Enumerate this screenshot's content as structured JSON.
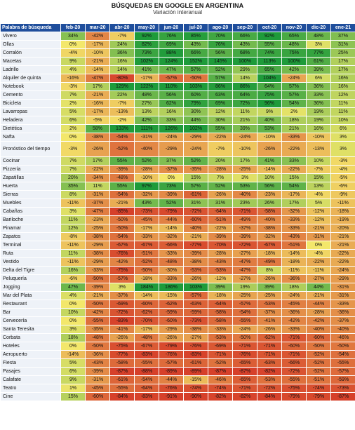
{
  "chart_data": {
    "type": "heatmap",
    "title": "BÚSQUEDAS EN GOOGLE EN ARGENTINA",
    "subtitle": "Variación interanual",
    "row_header": "Palabra de búsqueda",
    "columns": [
      "feb-20",
      "mar-20",
      "abr-20",
      "may-20",
      "jun-20",
      "jul-20",
      "ago-20",
      "sep-20",
      "oct-20",
      "nov-20",
      "dic-20",
      "ene-21"
    ],
    "colors": {
      "header_bg": "#1f4e9c",
      "high": "#1e9b3a",
      "mid": "#f3e76b",
      "low": "#d6402a"
    },
    "rows": [
      {
        "label": "Vivero",
        "values": [
          34,
          -42,
          -7,
          92,
          76,
          85,
          70,
          66,
          92,
          65,
          48,
          37
        ]
      },
      {
        "label": "Ollas",
        "values": [
          0,
          -17,
          24,
          82,
          69,
          43,
          76,
          43,
          55,
          48,
          3,
          31
        ]
      },
      {
        "label": "Corralón",
        "values": [
          -4,
          -10,
          36,
          73,
          88,
          66,
          56,
          68,
          74,
          75,
          77,
          25
        ]
      },
      {
        "label": "Macetas",
        "values": [
          9,
          -21,
          16,
          102,
          124,
          152,
          145,
          100,
          113,
          100,
          61,
          17
        ]
      },
      {
        "label": "Ladrillo",
        "values": [
          4,
          -14,
          14,
          41,
          47,
          57,
          52,
          29,
          65,
          42,
          39,
          17
        ]
      },
      {
        "label": "Alquiler de quinta",
        "values": [
          -16,
          -47,
          -80,
          -17,
          -57,
          -50,
          57,
          14,
          104,
          -24,
          6,
          16
        ]
      },
      {
        "label": "Notebook",
        "values": [
          -3,
          17,
          129,
          122,
          110,
          103,
          86,
          86,
          64,
          57,
          36,
          16
        ]
      },
      {
        "label": "Cemento",
        "values": [
          7,
          -21,
          22,
          48,
          56,
          60,
          63,
          64,
          75,
          57,
          33,
          12
        ]
      },
      {
        "label": "Bicicleta",
        "values": [
          2,
          -16,
          -7,
          27,
          62,
          79,
          69,
          72,
          96,
          54,
          36,
          11
        ]
      },
      {
        "label": "Lavarropas",
        "values": [
          5,
          -17,
          -13,
          13,
          16,
          30,
          12,
          11,
          9,
          2,
          19,
          11
        ]
      },
      {
        "label": "Heladera",
        "values": [
          6,
          -5,
          -2,
          42,
          33,
          44,
          30,
          21,
          40,
          18,
          19,
          10
        ]
      },
      {
        "label": "Dietética",
        "values": [
          2,
          58,
          133,
          111,
          126,
          102,
          55,
          39,
          53,
          21,
          16,
          6
        ]
      },
      {
        "label": "Nafta",
        "values": [
          0,
          -38,
          -54,
          -31,
          -24,
          -29,
          -22,
          -24,
          -10,
          -33,
          -10,
          3
        ]
      },
      {
        "label": "Pronóstico del tiempo",
        "values": [
          -3,
          -26,
          -52,
          -40,
          -29,
          -24,
          -7,
          -10,
          -26,
          -22,
          -13,
          3
        ]
      },
      {
        "label": "Cocinar",
        "values": [
          7,
          17,
          55,
          52,
          37,
          52,
          20,
          17,
          41,
          33,
          10,
          -3
        ]
      },
      {
        "label": "Pizzería",
        "values": [
          7,
          -22,
          -39,
          -28,
          -37,
          -35,
          -28,
          -25,
          -14,
          -22,
          -7,
          -4
        ]
      },
      {
        "label": "Zapatillas",
        "values": [
          20,
          -34,
          -48,
          -10,
          0,
          15,
          7,
          3,
          10,
          15,
          15,
          -5
        ]
      },
      {
        "label": "Huerta",
        "values": [
          35,
          11,
          55,
          97,
          73,
          57,
          52,
          53,
          56,
          54,
          13,
          -6
        ]
      },
      {
        "label": "Sierras",
        "values": [
          8,
          -31,
          -54,
          -32,
          -39,
          -61,
          -26,
          -40,
          -23,
          -17,
          -4,
          -9
        ]
      },
      {
        "label": "Muebles",
        "values": [
          -11,
          -37,
          -21,
          43,
          52,
          31,
          31,
          23,
          26,
          17,
          5,
          -11
        ]
      },
      {
        "label": "Cabañas",
        "values": [
          3,
          -47,
          -85,
          -73,
          -79,
          -72,
          -64,
          -71,
          -58,
          -32,
          -12,
          -18
        ]
      },
      {
        "label": "Bariloche",
        "values": [
          11,
          -23,
          -50,
          -45,
          -44,
          -60,
          -51,
          -49,
          -40,
          -33,
          -12,
          -19
        ]
      },
      {
        "label": "Pinamar",
        "values": [
          12,
          -25,
          -50,
          -17,
          -14,
          -40,
          -22,
          -37,
          -38,
          -33,
          -21,
          -20
        ]
      },
      {
        "label": "Zapatos",
        "values": [
          -8,
          -38,
          -54,
          -33,
          -32,
          -21,
          -39,
          -39,
          -32,
          -43,
          -31,
          -21
        ]
      },
      {
        "label": "Terminal",
        "values": [
          -11,
          -29,
          -67,
          -67,
          -66,
          -77,
          -70,
          -72,
          -67,
          -51,
          0,
          -21
        ]
      },
      {
        "label": "Ruta",
        "values": [
          11,
          -38,
          -76,
          -51,
          -33,
          -39,
          -28,
          -27,
          -18,
          -14,
          -4,
          -22
        ]
      },
      {
        "label": "Vestido",
        "values": [
          -11,
          -29,
          -42,
          -52,
          -48,
          -38,
          -43,
          -47,
          -49,
          -18,
          -22,
          -22
        ]
      },
      {
        "label": "Delta del Tigre",
        "values": [
          16,
          -33,
          -75,
          -50,
          -30,
          -53,
          -53,
          -47,
          8,
          -11,
          -11,
          -24
        ]
      },
      {
        "label": "Peluquería",
        "values": [
          -6,
          -50,
          -57,
          -18,
          -33,
          -26,
          -12,
          -27,
          -26,
          -36,
          -27,
          -29
        ]
      },
      {
        "label": "Jogging",
        "values": [
          47,
          -39,
          3,
          184,
          186,
          103,
          39,
          19,
          39,
          18,
          44,
          -31
        ]
      },
      {
        "label": "Mar del Plata",
        "values": [
          4,
          -21,
          -37,
          -14,
          -15,
          -57,
          -18,
          -25,
          -25,
          -24,
          -21,
          -31
        ]
      },
      {
        "label": "Restaurant",
        "values": [
          0,
          -50,
          -69,
          -60,
          -62,
          -63,
          -64,
          -57,
          -53,
          -45,
          -44,
          -33
        ]
      },
      {
        "label": "Bar",
        "values": [
          10,
          -42,
          -72,
          -62,
          -59,
          -59,
          -58,
          -54,
          -37,
          -36,
          -28,
          -36
        ]
      },
      {
        "label": "Cervecería",
        "values": [
          0,
          -55,
          -83,
          -70,
          -60,
          -73,
          -58,
          -55,
          -41,
          -42,
          -42,
          -37
        ]
      },
      {
        "label": "Santa Teresita",
        "values": [
          3,
          -35,
          -41,
          -17,
          -29,
          -38,
          -33,
          -24,
          -26,
          -33,
          -40,
          -40
        ]
      },
      {
        "label": "Corbata",
        "values": [
          18,
          -48,
          -26,
          -48,
          -26,
          -27,
          -53,
          -50,
          -62,
          -71,
          -60,
          -46
        ]
      },
      {
        "label": "Hoteles",
        "values": [
          0,
          -50,
          -75,
          -67,
          -79,
          -76,
          -69,
          -71,
          -71,
          -60,
          -50,
          -50
        ]
      },
      {
        "label": "Aeropuerto",
        "values": [
          -14,
          -36,
          -77,
          -83,
          -76,
          -83,
          -71,
          -76,
          -71,
          -71,
          -52,
          -54
        ]
      },
      {
        "label": "Fiesta",
        "values": [
          5,
          -43,
          -58,
          -55,
          -57,
          -61,
          -52,
          -65,
          -63,
          -66,
          -52,
          -55
        ]
      },
      {
        "label": "Pasajes",
        "values": [
          6,
          -39,
          -87,
          -88,
          -89,
          -89,
          -87,
          -87,
          -82,
          -72,
          -52,
          -57
        ]
      },
      {
        "label": "Calafate",
        "values": [
          9,
          -31,
          -61,
          -54,
          -44,
          -15,
          -46,
          -65,
          -53,
          -55,
          -51,
          -59
        ]
      },
      {
        "label": "Teatro",
        "values": [
          1,
          -45,
          -55,
          -64,
          -76,
          -74,
          -74,
          -71,
          -72,
          -75,
          -74,
          -73
        ]
      },
      {
        "label": "Cine",
        "values": [
          15,
          -60,
          -84,
          -83,
          -91,
          -90,
          -82,
          -82,
          -84,
          -79,
          -79,
          -87
        ]
      }
    ]
  }
}
